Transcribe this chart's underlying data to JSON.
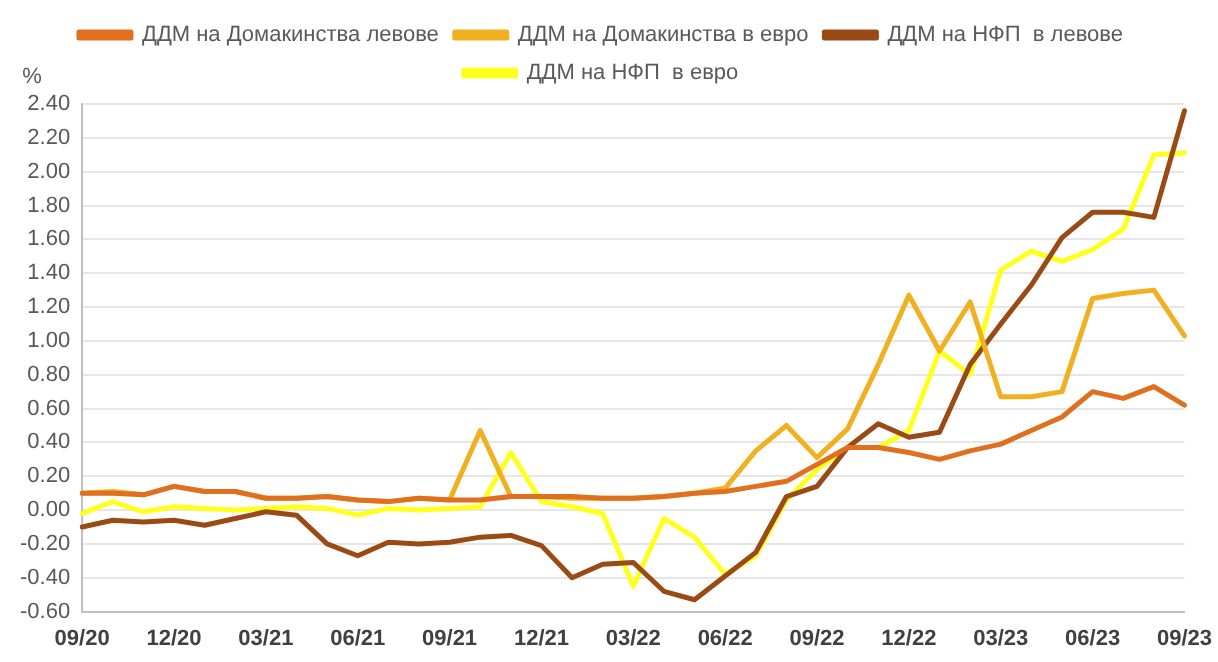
{
  "chart_data": {
    "type": "line",
    "ylabel": "%",
    "categories": [
      "09/20",
      null,
      null,
      "12/20",
      null,
      null,
      "03/21",
      null,
      null,
      "06/21",
      null,
      null,
      "09/21",
      null,
      null,
      "12/21",
      null,
      null,
      "03/22",
      null,
      null,
      "06/22",
      null,
      null,
      "09/22",
      null,
      null,
      "12/22",
      null,
      null,
      "03/23",
      null,
      null,
      "06/23",
      null,
      null,
      "09/23"
    ],
    "series": [
      {
        "name": "ДДМ на Домакинства левове",
        "color": "#e07020",
        "values": [
          0.1,
          0.1,
          0.09,
          0.14,
          0.11,
          0.11,
          0.07,
          0.07,
          0.08,
          0.06,
          0.05,
          0.07,
          0.06,
          0.06,
          0.08,
          0.08,
          0.08,
          0.07,
          0.07,
          0.08,
          0.1,
          0.11,
          0.14,
          0.17,
          0.27,
          0.37,
          0.37,
          0.34,
          0.3,
          0.35,
          0.39,
          0.47,
          0.55,
          0.7,
          0.66,
          0.73,
          0.62
        ]
      },
      {
        "name": "ДДМ на Домакинства в евро",
        "color": "#f0b020",
        "values": [
          0.1,
          0.11,
          0.09,
          0.14,
          0.11,
          0.11,
          0.07,
          0.07,
          0.08,
          0.06,
          0.05,
          0.07,
          0.06,
          0.47,
          0.08,
          0.08,
          0.07,
          0.07,
          0.07,
          0.08,
          0.1,
          0.13,
          0.35,
          0.5,
          0.31,
          0.48,
          0.86,
          1.27,
          0.94,
          1.23,
          0.67,
          0.67,
          0.7,
          1.25,
          1.28,
          1.3,
          1.03
        ]
      },
      {
        "name": "ДДМ на НФП  в левове",
        "color": "#9a4a14",
        "values": [
          -0.1,
          -0.06,
          -0.07,
          -0.06,
          -0.09,
          -0.05,
          -0.01,
          -0.03,
          -0.2,
          -0.27,
          -0.19,
          -0.2,
          -0.19,
          -0.16,
          -0.15,
          -0.21,
          -0.4,
          -0.32,
          -0.31,
          -0.48,
          -0.53,
          -0.39,
          -0.25,
          0.08,
          0.14,
          0.37,
          0.51,
          0.43,
          0.46,
          0.86,
          1.1,
          1.33,
          1.61,
          1.76,
          1.76,
          1.73,
          2.36
        ]
      },
      {
        "name": "ДДМ на НФП  в евро",
        "color": "#ffff20",
        "values": [
          -0.02,
          0.05,
          -0.01,
          0.02,
          0.01,
          0.0,
          0.01,
          0.02,
          0.01,
          -0.03,
          0.01,
          0.0,
          0.01,
          0.02,
          0.34,
          0.05,
          0.02,
          -0.02,
          -0.45,
          -0.05,
          -0.16,
          -0.38,
          -0.27,
          0.06,
          0.24,
          0.37,
          0.37,
          0.47,
          0.94,
          0.8,
          1.42,
          1.53,
          1.47,
          1.54,
          1.66,
          2.1,
          2.11
        ]
      }
    ],
    "ylim": [
      -0.6,
      2.4
    ],
    "yticks": [
      {
        "value": -0.6,
        "label": "-0.60"
      },
      {
        "value": -0.4,
        "label": "-0.40"
      },
      {
        "value": -0.2,
        "label": "-0.20"
      },
      {
        "value": 0,
        "label": "0.00"
      },
      {
        "value": 0.2,
        "label": "0.20"
      },
      {
        "value": 0.4,
        "label": "0.40"
      },
      {
        "value": 0.6,
        "label": "0.60"
      },
      {
        "value": 0.8,
        "label": "0.80"
      },
      {
        "value": 1,
        "label": "1.00"
      },
      {
        "value": 1.2,
        "label": "1.20"
      },
      {
        "value": 1.4,
        "label": "1.40"
      },
      {
        "value": 1.6,
        "label": "1.60"
      },
      {
        "value": 1.8,
        "label": "1.80"
      },
      {
        "value": 2,
        "label": "2.00"
      },
      {
        "value": 2.2,
        "label": "2.20"
      },
      {
        "value": 2.4,
        "label": "2.40"
      }
    ],
    "grid": "y",
    "legend": "top",
    "marker": "none",
    "line_style": "solid"
  }
}
